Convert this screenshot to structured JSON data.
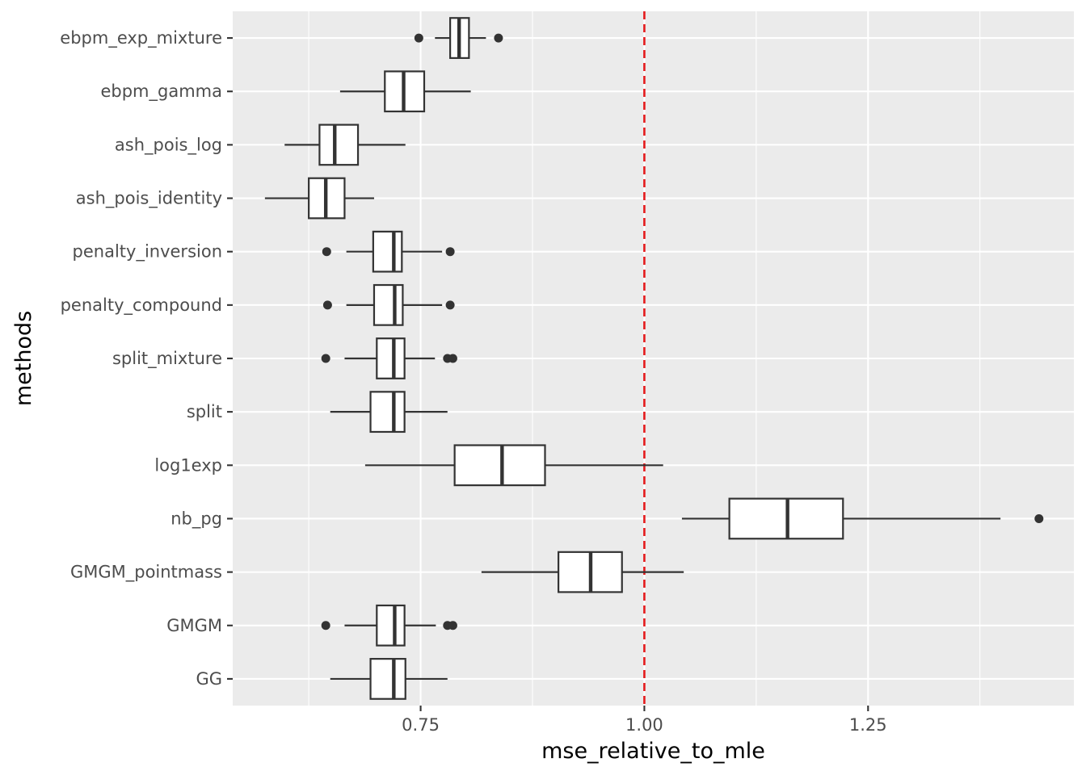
{
  "chart_data": {
    "type": "boxplot",
    "orientation": "horizontal",
    "xlabel": "mse_relative_to_mle",
    "ylabel": "methods",
    "xlim": [
      0.54,
      1.48
    ],
    "x_ticks": [
      {
        "value": 0.75,
        "label": "0.75"
      },
      {
        "value": 1.0,
        "label": "1.00"
      },
      {
        "value": 1.25,
        "label": "1.25"
      }
    ],
    "reference_line": {
      "value": 1.0,
      "color": "#e41a1c",
      "style": "dashed"
    },
    "categories": [
      "ebpm_exp_mixture",
      "ebpm_gamma",
      "ash_pois_log",
      "ash_pois_identity",
      "penalty_inversion",
      "penalty_compound",
      "split_mixture",
      "split",
      "log1exp",
      "nb_pg",
      "GMGM_pointmass",
      "GMGM",
      "GG"
    ],
    "boxes": [
      {
        "method": "ebpm_exp_mixture",
        "whisker_low": 0.766,
        "q1": 0.783,
        "median": 0.793,
        "q3": 0.804,
        "whisker_high": 0.823,
        "outliers": [
          0.748,
          0.837
        ]
      },
      {
        "method": "ebpm_gamma",
        "whisker_low": 0.66,
        "q1": 0.71,
        "median": 0.731,
        "q3": 0.754,
        "whisker_high": 0.806,
        "outliers": []
      },
      {
        "method": "ash_pois_log",
        "whisker_low": 0.598,
        "q1": 0.637,
        "median": 0.654,
        "q3": 0.68,
        "whisker_high": 0.733,
        "outliers": []
      },
      {
        "method": "ash_pois_identity",
        "whisker_low": 0.576,
        "q1": 0.625,
        "median": 0.644,
        "q3": 0.665,
        "whisker_high": 0.698,
        "outliers": []
      },
      {
        "method": "penalty_inversion",
        "whisker_low": 0.667,
        "q1": 0.697,
        "median": 0.72,
        "q3": 0.729,
        "whisker_high": 0.774,
        "outliers": [
          0.645,
          0.783
        ]
      },
      {
        "method": "penalty_compound",
        "whisker_low": 0.667,
        "q1": 0.698,
        "median": 0.721,
        "q3": 0.73,
        "whisker_high": 0.774,
        "outliers": [
          0.646,
          0.783
        ]
      },
      {
        "method": "split_mixture",
        "whisker_low": 0.665,
        "q1": 0.701,
        "median": 0.72,
        "q3": 0.732,
        "whisker_high": 0.766,
        "outliers": [
          0.644,
          0.78,
          0.786
        ]
      },
      {
        "method": "split",
        "whisker_low": 0.649,
        "q1": 0.694,
        "median": 0.72,
        "q3": 0.732,
        "whisker_high": 0.78,
        "outliers": []
      },
      {
        "method": "log1exp",
        "whisker_low": 0.688,
        "q1": 0.788,
        "median": 0.841,
        "q3": 0.889,
        "whisker_high": 1.021,
        "outliers": []
      },
      {
        "method": "nb_pg",
        "whisker_low": 1.042,
        "q1": 1.095,
        "median": 1.16,
        "q3": 1.222,
        "whisker_high": 1.398,
        "outliers": [
          1.441
        ]
      },
      {
        "method": "GMGM_pointmass",
        "whisker_low": 0.818,
        "q1": 0.904,
        "median": 0.94,
        "q3": 0.975,
        "whisker_high": 1.044,
        "outliers": []
      },
      {
        "method": "GMGM",
        "whisker_low": 0.665,
        "q1": 0.701,
        "median": 0.721,
        "q3": 0.732,
        "whisker_high": 0.767,
        "outliers": [
          0.644,
          0.78,
          0.786
        ]
      },
      {
        "method": "GG",
        "whisker_low": 0.649,
        "q1": 0.694,
        "median": 0.72,
        "q3": 0.733,
        "whisker_high": 0.78,
        "outliers": []
      }
    ]
  }
}
